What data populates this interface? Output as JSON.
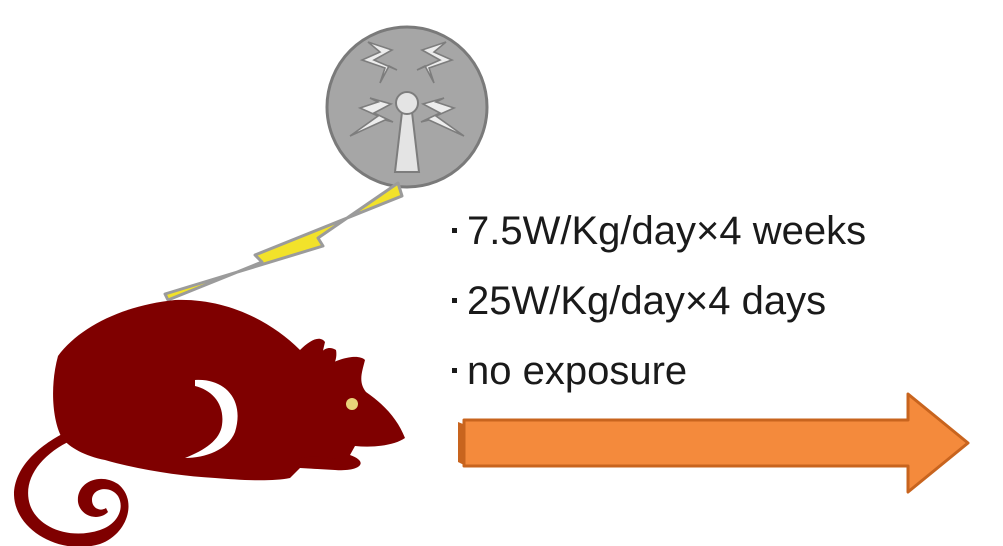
{
  "conditions": [
    {
      "text": "7.5W/Kg/day×4 weeks"
    },
    {
      "text": "25W/Kg/day×4 days"
    },
    {
      "text": "no exposure"
    }
  ],
  "colors": {
    "rat": "#7f0000",
    "rat_eye": "#e8d37a",
    "antenna_disc": "#a3a3a3",
    "antenna_outline": "#6f6f6f",
    "lightning": "#f2e22a",
    "lightning_outline": "#9a9a9a",
    "arrow_fill": "#f48a3c",
    "arrow_outline": "#c8641e"
  },
  "icons": {
    "transmitter": "radio-transmitter-icon",
    "signal": "lightning-bolt-icon",
    "subject": "rat-icon",
    "direction": "right-arrow-icon"
  }
}
